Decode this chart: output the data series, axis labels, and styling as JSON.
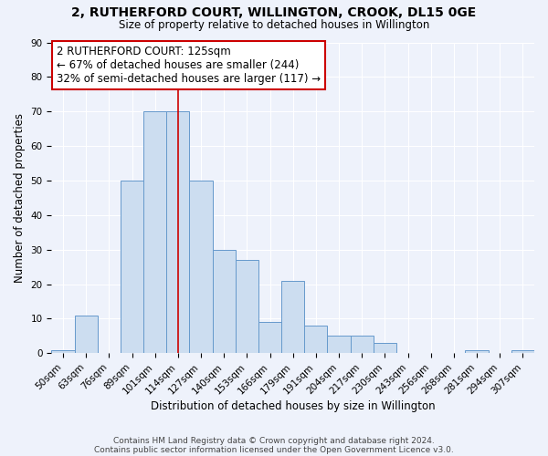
{
  "title": "2, RUTHERFORD COURT, WILLINGTON, CROOK, DL15 0GE",
  "subtitle": "Size of property relative to detached houses in Willington",
  "xlabel": "Distribution of detached houses by size in Willington",
  "ylabel": "Number of detached properties",
  "bar_labels": [
    "50sqm",
    "63sqm",
    "76sqm",
    "89sqm",
    "101sqm",
    "114sqm",
    "127sqm",
    "140sqm",
    "153sqm",
    "166sqm",
    "179sqm",
    "191sqm",
    "204sqm",
    "217sqm",
    "230sqm",
    "243sqm",
    "256sqm",
    "268sqm",
    "281sqm",
    "294sqm",
    "307sqm"
  ],
  "bar_values": [
    1,
    11,
    0,
    50,
    70,
    70,
    50,
    30,
    27,
    9,
    21,
    8,
    5,
    5,
    3,
    0,
    0,
    0,
    1,
    0,
    1
  ],
  "bar_color": "#ccddf0",
  "bar_edge_color": "#6699cc",
  "ylim": [
    0,
    90
  ],
  "yticks": [
    0,
    10,
    20,
    30,
    40,
    50,
    60,
    70,
    80,
    90
  ],
  "vline_x": 5.5,
  "vline_color": "#cc0000",
  "annotation_line1": "2 RUTHERFORD COURT: 125sqm",
  "annotation_line2": "← 67% of detached houses are smaller (244)",
  "annotation_line3": "32% of semi-detached houses are larger (117) →",
  "footnote1": "Contains HM Land Registry data © Crown copyright and database right 2024.",
  "footnote2": "Contains public sector information licensed under the Open Government Licence v3.0.",
  "background_color": "#eef2fb",
  "grid_color": "#d0d8e8",
  "title_fontsize": 10,
  "subtitle_fontsize": 8.5,
  "annotation_fontsize": 8.5,
  "ylabel_fontsize": 8.5,
  "xlabel_fontsize": 8.5,
  "tick_fontsize": 7.5,
  "footnote_fontsize": 6.5
}
